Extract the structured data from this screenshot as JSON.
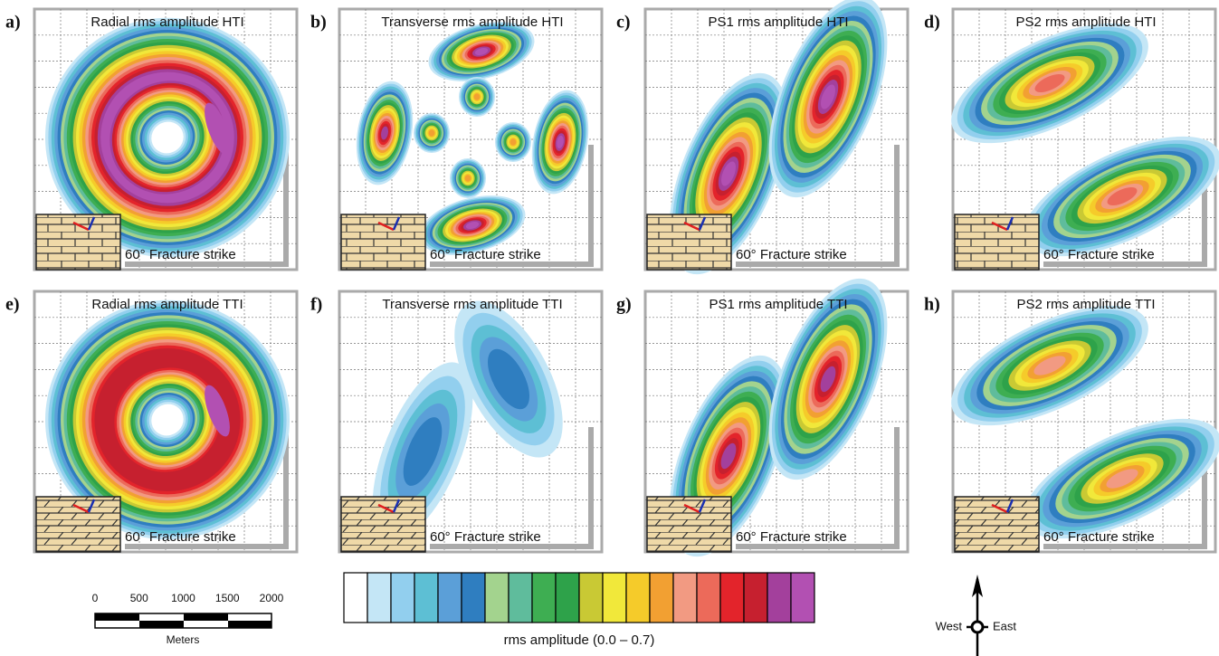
{
  "panels": [
    {
      "letter": "a)",
      "title": "Radial rms amplitude HTI",
      "caption": "60° Fracture strike"
    },
    {
      "letter": "b)",
      "title": "Transverse rms amplitude HTI",
      "caption": "60° Fracture strike"
    },
    {
      "letter": "c)",
      "title": "PS1 rms amplitude HTI",
      "caption": "60° Fracture strike"
    },
    {
      "letter": "d)",
      "title": "PS2 rms amplitude HTI",
      "caption": "60° Fracture strike"
    },
    {
      "letter": "e)",
      "title": "Radial rms amplitude TTI",
      "caption": "60° Fracture strike"
    },
    {
      "letter": "f)",
      "title": "Transverse rms amplitude TTI",
      "caption": "60° Fracture strike"
    },
    {
      "letter": "g)",
      "title": "PS1 rms amplitude TTI",
      "caption": "60° Fracture strike"
    },
    {
      "letter": "h)",
      "title": "PS2 rms amplitude TTI",
      "caption": "60° Fracture strike"
    }
  ],
  "scale_bar": {
    "ticks": [
      0,
      500,
      1000,
      1500,
      2000
    ],
    "unit": "Meters"
  },
  "colorbar": {
    "label": "rms amplitude (0.0 – 0.7)"
  },
  "compass": {
    "west": "West",
    "east": "East"
  }
}
